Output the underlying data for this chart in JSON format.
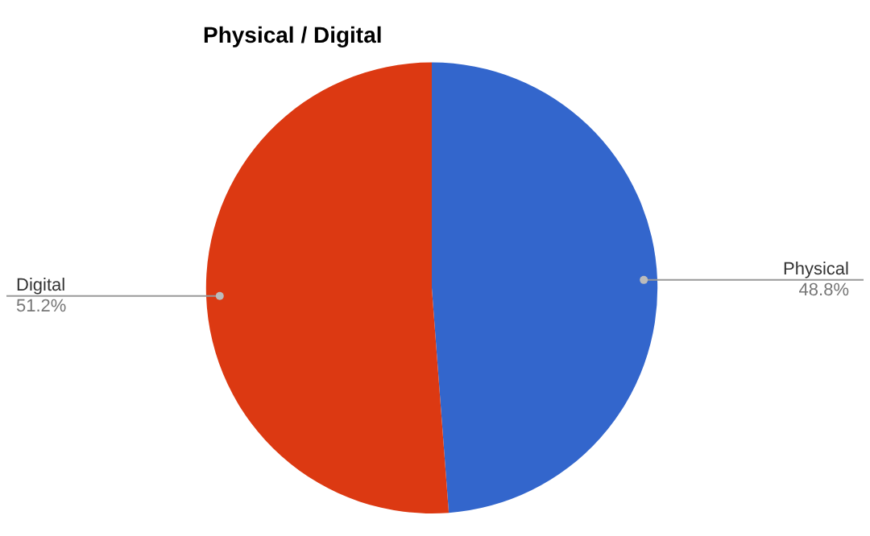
{
  "chart_data": {
    "type": "pie",
    "title": "Physical / Digital",
    "categories": [
      "Physical",
      "Digital"
    ],
    "values": [
      48.8,
      51.2
    ],
    "colors": [
      "#3366cc",
      "#dc3912"
    ],
    "value_labels": [
      "48.8%",
      "51.2%"
    ],
    "legend": false
  }
}
